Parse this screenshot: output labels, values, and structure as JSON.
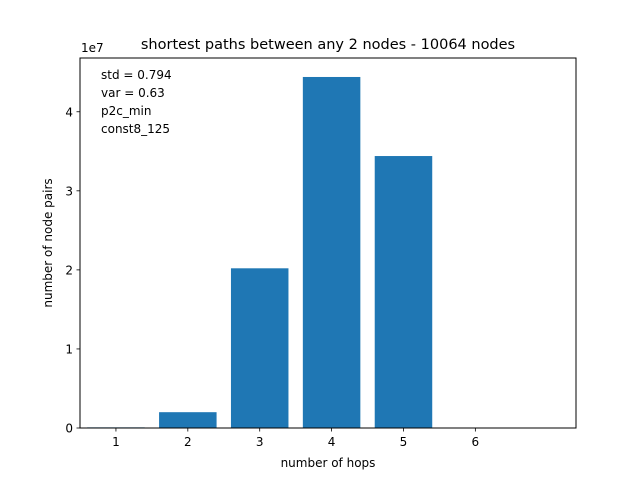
{
  "chart_data": {
    "type": "bar",
    "title": "shortest paths between any 2 nodes - 10064 nodes",
    "xlabel": "number of hops",
    "ylabel": "number of node pairs",
    "y_scale_label": "1e7",
    "categories": [
      1,
      2,
      3,
      4,
      5,
      6
    ],
    "values": [
      80000,
      2000000,
      20200000,
      44400000,
      34400000,
      60000
    ],
    "xlim": [
      0.5,
      7.4
    ],
    "ylim": [
      0,
      46800000
    ],
    "yticks": [
      0,
      10000000,
      20000000,
      30000000,
      40000000
    ],
    "ytick_labels": [
      "0",
      "1",
      "2",
      "3",
      "4"
    ],
    "bar_color": "#1f77b4",
    "grid": false,
    "annotations": [
      "std = 0.794",
      "var = 0.63",
      "p2c_min",
      "const8_125"
    ]
  }
}
